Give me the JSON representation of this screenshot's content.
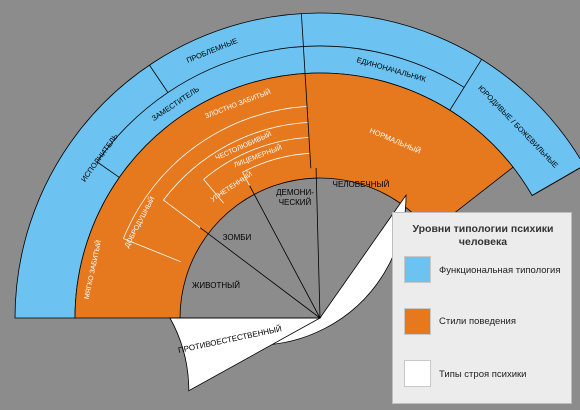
{
  "colors": {
    "background": "#8c8c8c",
    "functional": "#6cc2f1",
    "behavior": "#e6781e",
    "psyche": "#ffffff",
    "line": "#000000"
  },
  "functional_typology": {
    "left_segment": "ИСПОЛНИТЕЛЬ",
    "right_segment": "ЕДИНОНАЧАЛЬНИК",
    "deputy": "ЗАМЕСТИТЕЛЬ",
    "problem": "ПРОБЛЕМНЫЕ",
    "freaks": "ЮРОДИВЫЕ / БОЖЕВИЛЬНЫЕ"
  },
  "behavior_styles": {
    "mildly_downtrodden": "МЯГКО ЗАБИТЫЙ",
    "good_natured": "ДОБРОДУШНЫЙ",
    "viciously_downtrodden": "ЗЛОСТНО ЗАБИТЫЙ",
    "vain": "ЧЕСТОЛЮБИВЫЙ",
    "hypocrite": "ЛИЦЕМЕРНЫЙ",
    "oppressed": "УГНЕТЕННЫЙ",
    "normal": "НОРМАЛЬНЫЙ"
  },
  "psyche_types": {
    "unnatural": "ПРОТИВОЕСТЕСТВЕННЫЙ",
    "animal": "ЖИВОТНЫЙ",
    "zombie": "ЗОМБИ",
    "demonic_1": "ДЕМОНИ-",
    "demonic_2": "ЧЕСКИЙ",
    "human": "ЧЕЛОВЕЧНЫЙ"
  },
  "legend": {
    "title_line1": "Уровни типологии психики",
    "title_line2": "человека",
    "items": [
      {
        "label": "Функциональная типология",
        "color": "#6cc2f1"
      },
      {
        "label": "Стили поведения",
        "color": "#e6781e"
      },
      {
        "label": "Типы строя психики",
        "color": "#ffffff"
      }
    ]
  }
}
